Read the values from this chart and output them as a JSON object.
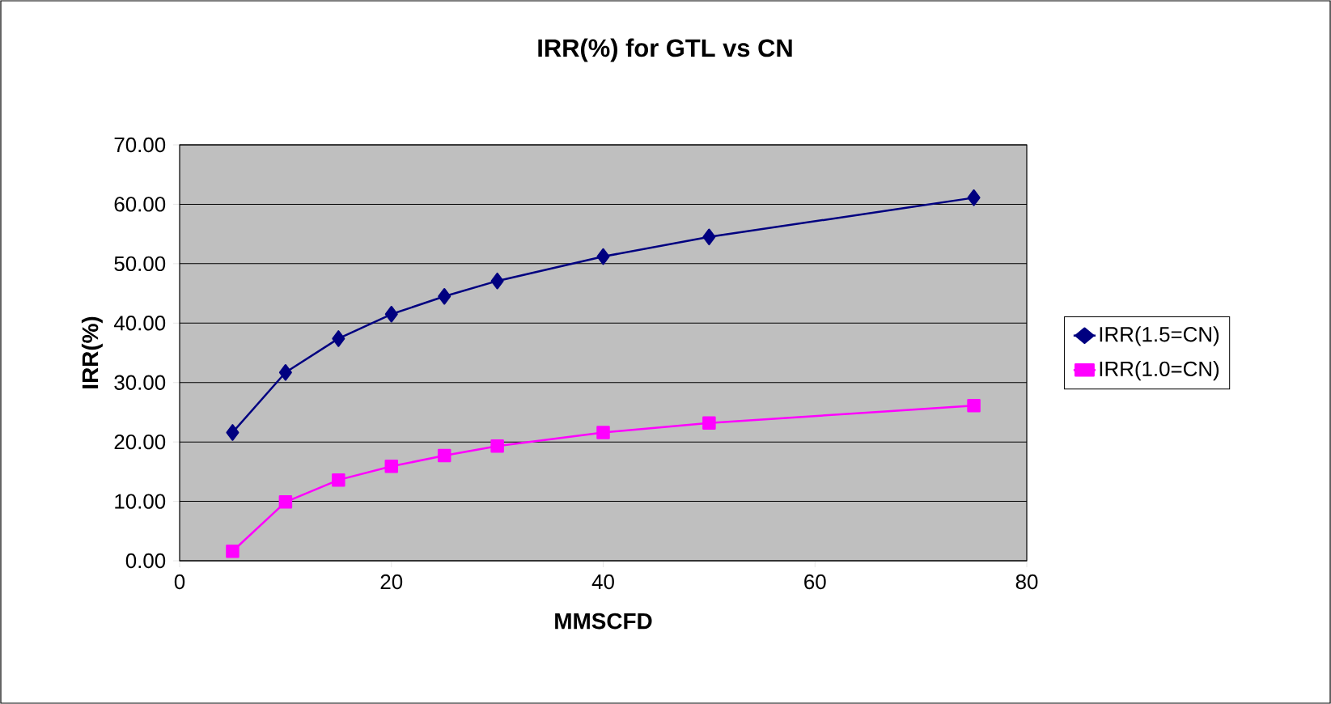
{
  "chart_data": {
    "type": "line",
    "title": "IRR(%) for GTL vs CN",
    "xlabel": "MMSCFD",
    "ylabel": "IRR(%)",
    "x": [
      5,
      10,
      15,
      20,
      25,
      30,
      40,
      50,
      75
    ],
    "series": [
      {
        "name": "IRR(1.5=CN)",
        "color": "#000080",
        "marker": "diamond",
        "values": [
          21.6,
          31.7,
          37.4,
          41.5,
          44.5,
          47.1,
          51.2,
          54.5,
          61.1
        ]
      },
      {
        "name": "IRR(1.0=CN)",
        "color": "#ff00ff",
        "marker": "square",
        "values": [
          1.6,
          9.9,
          13.6,
          15.9,
          17.7,
          19.3,
          21.6,
          23.2,
          26.1
        ]
      }
    ],
    "xlim": [
      0,
      80
    ],
    "xticks": [
      0,
      20,
      40,
      60,
      80
    ],
    "ylim": [
      0,
      70
    ],
    "yticks": [
      {
        "value": 0,
        "label": "0.00"
      },
      {
        "value": 10,
        "label": "10.00"
      },
      {
        "value": 20,
        "label": "20.00"
      },
      {
        "value": 30,
        "label": "30.00"
      },
      {
        "value": 40,
        "label": "40.00"
      },
      {
        "value": 50,
        "label": "50.00"
      },
      {
        "value": 60,
        "label": "60.00"
      },
      {
        "value": 70,
        "label": "70.00"
      }
    ],
    "grid": "y",
    "legend": "right",
    "line_style": "solid"
  }
}
